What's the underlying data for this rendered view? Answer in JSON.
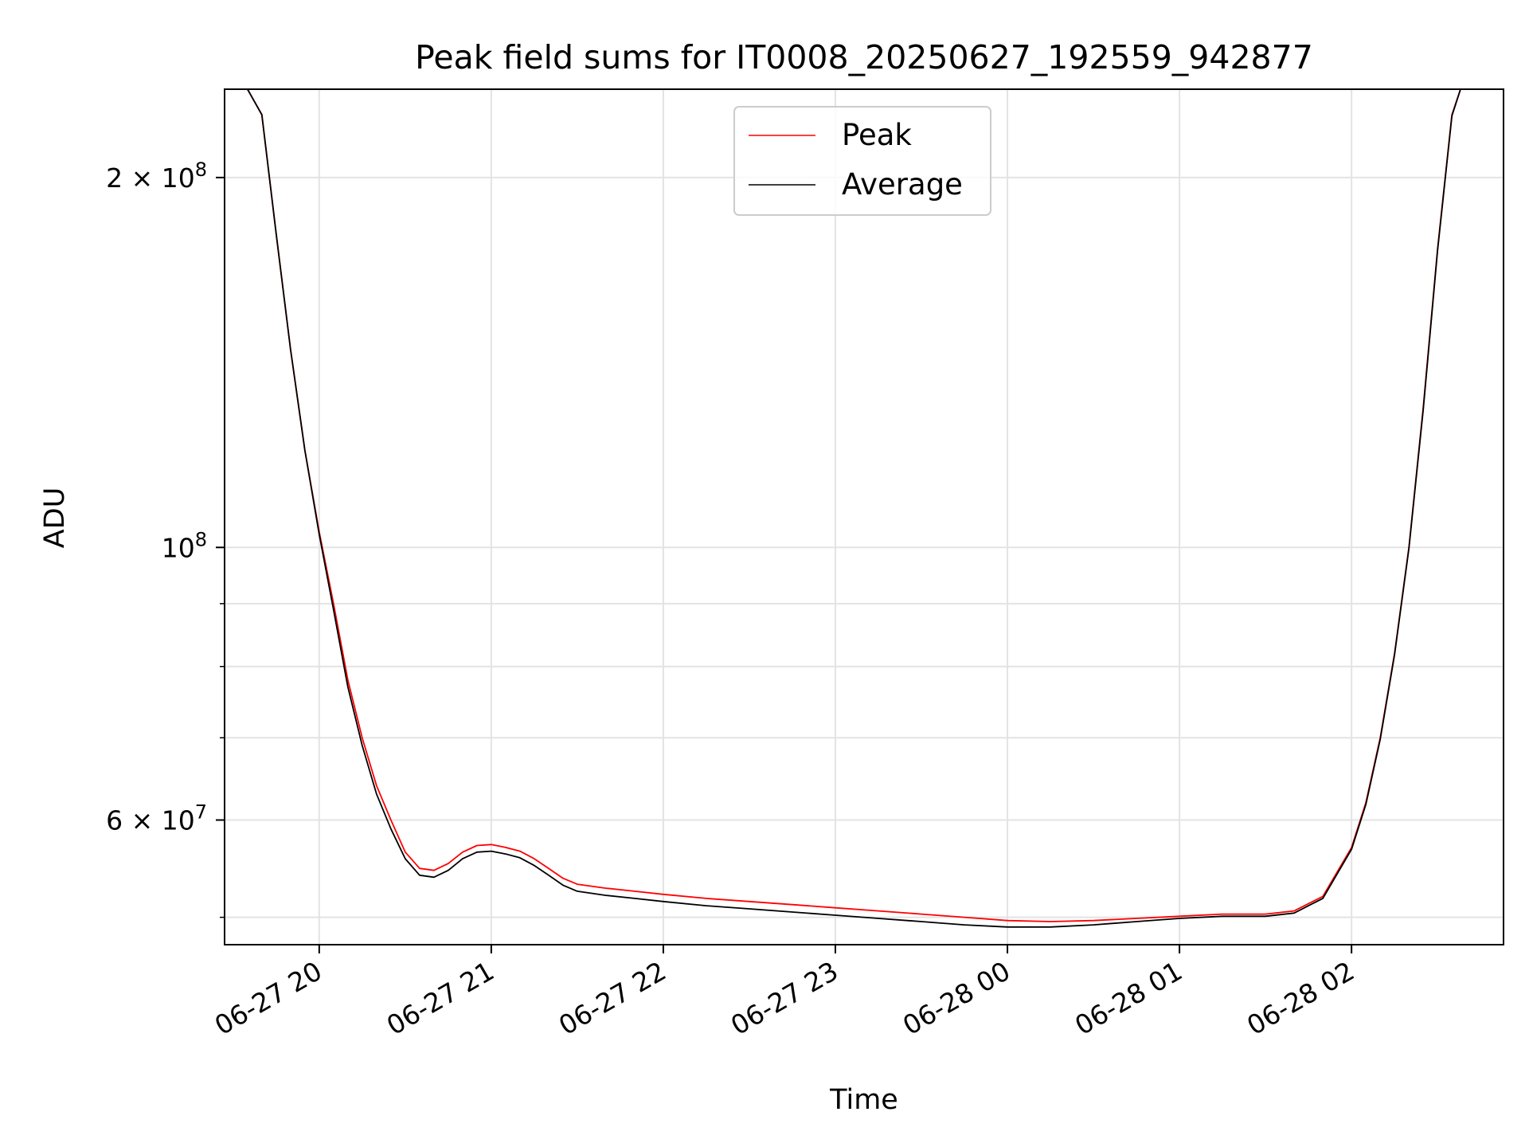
{
  "chart_data": {
    "type": "line",
    "title": "Peak field sums for IT0008_20250627_192559_942877",
    "xlabel": "Time",
    "ylabel": "ADU",
    "x_axis": "time",
    "y_scale": "log",
    "xlim": [
      "2025-06-27 19:27",
      "2025-06-28 02:53"
    ],
    "ylim": [
      47500000,
      236000000
    ],
    "grid": true,
    "legend_position": "top-center",
    "x_ticks": [
      {
        "value": "2025-06-27 20:00",
        "label": "06-27 20"
      },
      {
        "value": "2025-06-27 21:00",
        "label": "06-27 21"
      },
      {
        "value": "2025-06-27 22:00",
        "label": "06-27 22"
      },
      {
        "value": "2025-06-27 23:00",
        "label": "06-27 23"
      },
      {
        "value": "2025-06-28 00:00",
        "label": "06-28 00"
      },
      {
        "value": "2025-06-28 01:00",
        "label": "06-28 01"
      },
      {
        "value": "2025-06-28 02:00",
        "label": "06-28 02"
      }
    ],
    "y_ticks_major": [
      {
        "value": 200000000,
        "base": "2 × 10",
        "exp": "8"
      },
      {
        "value": 100000000,
        "base": "10",
        "exp": "8"
      },
      {
        "value": 60000000,
        "base": "6 × 10",
        "exp": "7"
      }
    ],
    "y_ticks_minor": [
      50000000,
      70000000,
      80000000,
      90000000
    ],
    "series": [
      {
        "name": "Peak",
        "color": "#ff0000",
        "points": [
          [
            "2025-06-27 19:27",
            236000000
          ],
          [
            "2025-06-27 19:35",
            236000000
          ],
          [
            "2025-06-27 19:40",
            225000000
          ],
          [
            "2025-06-27 19:45",
            180000000
          ],
          [
            "2025-06-27 19:50",
            145000000
          ],
          [
            "2025-06-27 19:55",
            120000000
          ],
          [
            "2025-06-27 20:00",
            103000000
          ],
          [
            "2025-06-27 20:05",
            90000000
          ],
          [
            "2025-06-27 20:10",
            78000000
          ],
          [
            "2025-06-27 20:15",
            70000000
          ],
          [
            "2025-06-27 20:20",
            64000000
          ],
          [
            "2025-06-27 20:25",
            60000000
          ],
          [
            "2025-06-27 20:30",
            56500000
          ],
          [
            "2025-06-27 20:35",
            54800000
          ],
          [
            "2025-06-27 20:40",
            54600000
          ],
          [
            "2025-06-27 20:45",
            55300000
          ],
          [
            "2025-06-27 20:50",
            56500000
          ],
          [
            "2025-06-27 20:55",
            57200000
          ],
          [
            "2025-06-27 21:00",
            57300000
          ],
          [
            "2025-06-27 21:05",
            57000000
          ],
          [
            "2025-06-27 21:10",
            56600000
          ],
          [
            "2025-06-27 21:15",
            55800000
          ],
          [
            "2025-06-27 21:20",
            54800000
          ],
          [
            "2025-06-27 21:25",
            53800000
          ],
          [
            "2025-06-27 21:30",
            53200000
          ],
          [
            "2025-06-27 21:40",
            52800000
          ],
          [
            "2025-06-27 21:50",
            52500000
          ],
          [
            "2025-06-27 22:00",
            52200000
          ],
          [
            "2025-06-27 22:15",
            51800000
          ],
          [
            "2025-06-27 22:30",
            51500000
          ],
          [
            "2025-06-27 22:45",
            51200000
          ],
          [
            "2025-06-27 23:00",
            50900000
          ],
          [
            "2025-06-27 23:15",
            50600000
          ],
          [
            "2025-06-27 23:30",
            50300000
          ],
          [
            "2025-06-27 23:45",
            50000000
          ],
          [
            "2025-06-28 00:00",
            49700000
          ],
          [
            "2025-06-28 00:15",
            49600000
          ],
          [
            "2025-06-28 00:30",
            49700000
          ],
          [
            "2025-06-28 00:45",
            49900000
          ],
          [
            "2025-06-28 01:00",
            50100000
          ],
          [
            "2025-06-28 01:15",
            50300000
          ],
          [
            "2025-06-28 01:30",
            50300000
          ],
          [
            "2025-06-28 01:40",
            50600000
          ],
          [
            "2025-06-28 01:50",
            52000000
          ],
          [
            "2025-06-28 02:00",
            57000000
          ],
          [
            "2025-06-28 02:05",
            62000000
          ],
          [
            "2025-06-28 02:10",
            70000000
          ],
          [
            "2025-06-28 02:15",
            82000000
          ],
          [
            "2025-06-28 02:20",
            100000000
          ],
          [
            "2025-06-28 02:25",
            130000000
          ],
          [
            "2025-06-28 02:30",
            175000000
          ],
          [
            "2025-06-28 02:35",
            225000000
          ],
          [
            "2025-06-28 02:38",
            236000000
          ],
          [
            "2025-06-28 02:53",
            236000000
          ]
        ]
      },
      {
        "name": "Average",
        "color": "#000000",
        "points": [
          [
            "2025-06-27 19:27",
            236000000
          ],
          [
            "2025-06-27 19:35",
            236000000
          ],
          [
            "2025-06-27 19:40",
            225000000
          ],
          [
            "2025-06-27 19:45",
            180000000
          ],
          [
            "2025-06-27 19:50",
            145000000
          ],
          [
            "2025-06-27 19:55",
            120000000
          ],
          [
            "2025-06-27 20:00",
            102500000
          ],
          [
            "2025-06-27 20:05",
            89000000
          ],
          [
            "2025-06-27 20:10",
            77000000
          ],
          [
            "2025-06-27 20:15",
            69000000
          ],
          [
            "2025-06-27 20:20",
            63000000
          ],
          [
            "2025-06-27 20:25",
            59000000
          ],
          [
            "2025-06-27 20:30",
            55800000
          ],
          [
            "2025-06-27 20:35",
            54100000
          ],
          [
            "2025-06-27 20:40",
            53900000
          ],
          [
            "2025-06-27 20:45",
            54600000
          ],
          [
            "2025-06-27 20:50",
            55800000
          ],
          [
            "2025-06-27 20:55",
            56500000
          ],
          [
            "2025-06-27 21:00",
            56600000
          ],
          [
            "2025-06-27 21:05",
            56300000
          ],
          [
            "2025-06-27 21:10",
            55900000
          ],
          [
            "2025-06-27 21:15",
            55100000
          ],
          [
            "2025-06-27 21:20",
            54100000
          ],
          [
            "2025-06-27 21:25",
            53100000
          ],
          [
            "2025-06-27 21:30",
            52500000
          ],
          [
            "2025-06-27 21:40",
            52100000
          ],
          [
            "2025-06-27 21:50",
            51800000
          ],
          [
            "2025-06-27 22:00",
            51500000
          ],
          [
            "2025-06-27 22:15",
            51100000
          ],
          [
            "2025-06-27 22:30",
            50800000
          ],
          [
            "2025-06-27 22:45",
            50500000
          ],
          [
            "2025-06-27 23:00",
            50200000
          ],
          [
            "2025-06-27 23:15",
            49900000
          ],
          [
            "2025-06-27 23:30",
            49600000
          ],
          [
            "2025-06-27 23:45",
            49300000
          ],
          [
            "2025-06-28 00:00",
            49100000
          ],
          [
            "2025-06-28 00:15",
            49100000
          ],
          [
            "2025-06-28 00:30",
            49300000
          ],
          [
            "2025-06-28 00:45",
            49600000
          ],
          [
            "2025-06-28 01:00",
            49900000
          ],
          [
            "2025-06-28 01:15",
            50100000
          ],
          [
            "2025-06-28 01:30",
            50100000
          ],
          [
            "2025-06-28 01:40",
            50400000
          ],
          [
            "2025-06-28 01:50",
            51800000
          ],
          [
            "2025-06-28 02:00",
            56800000
          ],
          [
            "2025-06-28 02:05",
            61800000
          ],
          [
            "2025-06-28 02:10",
            69800000
          ],
          [
            "2025-06-28 02:15",
            81800000
          ],
          [
            "2025-06-28 02:20",
            99800000
          ],
          [
            "2025-06-28 02:25",
            129500000
          ],
          [
            "2025-06-28 02:30",
            174500000
          ],
          [
            "2025-06-28 02:35",
            224500000
          ],
          [
            "2025-06-28 02:38",
            236000000
          ],
          [
            "2025-06-28 02:53",
            236000000
          ]
        ]
      }
    ]
  }
}
